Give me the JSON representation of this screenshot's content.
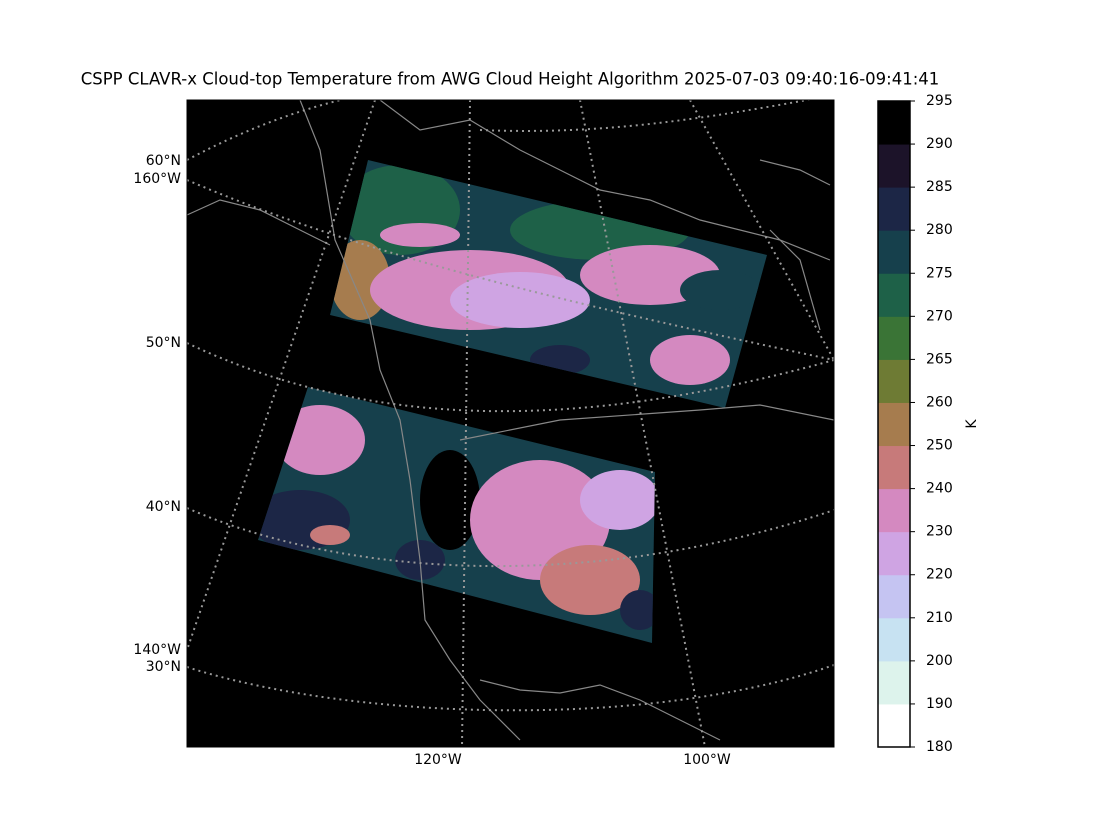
{
  "title": "CSPP CLAVR-x Cloud-top Temperature from AWG Cloud Height Algorithm 2025-07-03 09:40:16-09:41:41",
  "map": {
    "lat_labels": [
      "60°N",
      "50°N",
      "40°N",
      "30°N"
    ],
    "lon_labels": [
      "160°W",
      "140°W",
      "120°W",
      "100°W"
    ]
  },
  "colorbar": {
    "label": "K",
    "boundaries": [
      180,
      190,
      200,
      210,
      220,
      230,
      240,
      250,
      260,
      265,
      270,
      275,
      280,
      285,
      290,
      295
    ],
    "colors": [
      "#ffffff",
      "#ddf3ec",
      "#c7e2f2",
      "#c5c4f2",
      "#cfa4e3",
      "#d489c0",
      "#c77a7a",
      "#a67c4e",
      "#6e7b34",
      "#3a7436",
      "#1e6148",
      "#16404c",
      "#1c2646",
      "#1c1329",
      "#000000"
    ]
  }
}
